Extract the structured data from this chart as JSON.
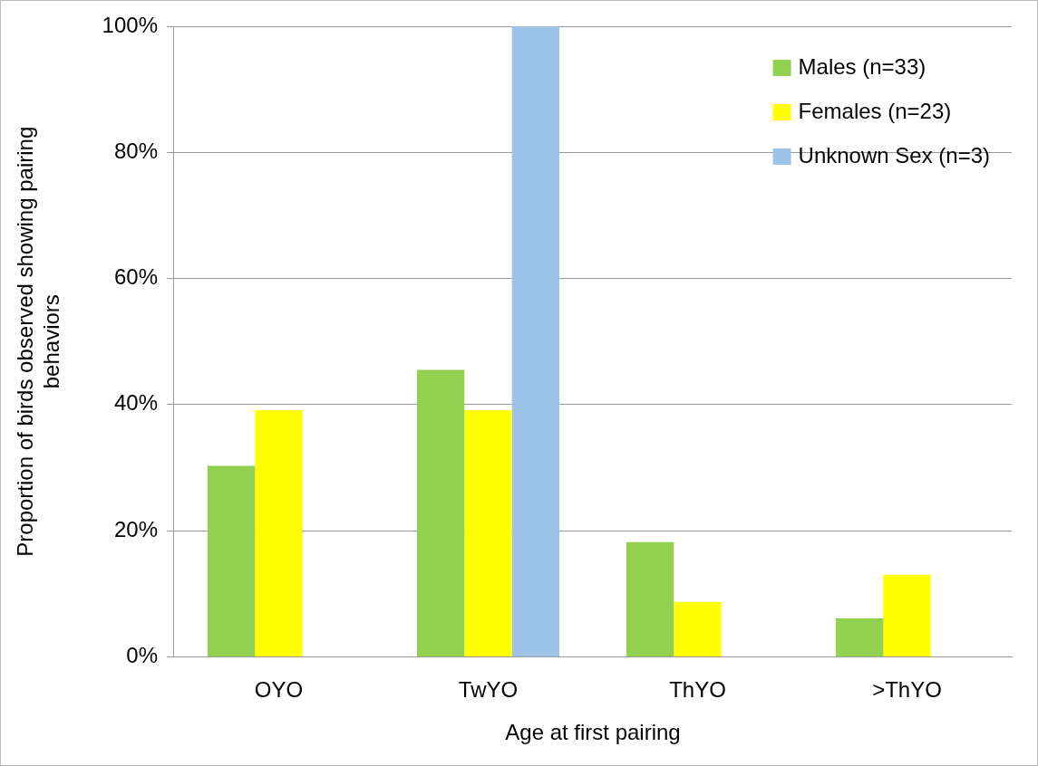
{
  "chart_data": {
    "type": "bar",
    "xlabel": "Age at first pairing",
    "ylabel": "Proportion of birds observed showing pairing behaviors",
    "categories": [
      "OYO",
      "TwYO",
      "ThYO",
      ">ThYO"
    ],
    "series": [
      {
        "name": "Males (n=33)",
        "color": "#92d050",
        "values": [
          30.3,
          45.5,
          18.2,
          6.1
        ]
      },
      {
        "name": "Females (n=23)",
        "color": "#ffff00",
        "values": [
          39.1,
          39.1,
          8.7,
          13.0
        ]
      },
      {
        "name": "Unknown Sex (n=3)",
        "color": "#9dc3e6",
        "values": [
          0,
          100,
          0,
          0
        ]
      }
    ],
    "ylim": [
      0,
      100
    ],
    "yticks": [
      {
        "value": 0,
        "label": "0%"
      },
      {
        "value": 20,
        "label": "20%"
      },
      {
        "value": 40,
        "label": "40%"
      },
      {
        "value": 60,
        "label": "60%"
      },
      {
        "value": 80,
        "label": "80%"
      },
      {
        "value": 100,
        "label": "100%"
      }
    ],
    "grid": "y",
    "legend": "top right"
  }
}
